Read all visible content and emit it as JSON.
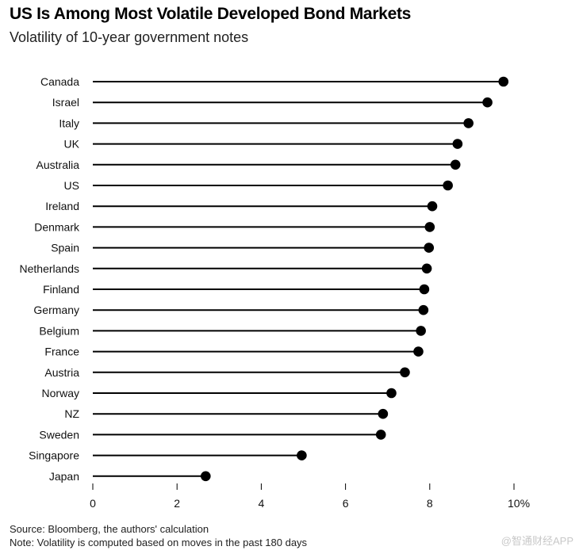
{
  "header": {
    "title": "US Is Among Most Volatile Developed Bond Markets",
    "subtitle": "Volatility of 10-year government notes"
  },
  "footer": {
    "source": "Source: Bloomberg, the authors' calculation",
    "note": "Note: Volatility is computed based on moves in the past 180 days"
  },
  "watermark": "@智通财经APP",
  "colors": {
    "marker": "#000000",
    "line": "#000000",
    "axis": "#000000"
  },
  "chart_data": {
    "type": "lollipop",
    "title": "US Is Among Most Volatile Developed Bond Markets",
    "subtitle": "Volatility of 10-year government notes",
    "xlabel": "",
    "ylabel": "",
    "xlim": [
      0,
      10
    ],
    "x_ticks": [
      0,
      2,
      4,
      6,
      8,
      10
    ],
    "x_tick_labels": [
      "0",
      "2",
      "4",
      "6",
      "8",
      "10%"
    ],
    "grid": false,
    "categories": [
      "Canada",
      "Israel",
      "Italy",
      "UK",
      "Australia",
      "US",
      "Ireland",
      "Denmark",
      "Spain",
      "Netherlands",
      "Finland",
      "Germany",
      "Belgium",
      "France",
      "Austria",
      "Norway",
      "NZ",
      "Sweden",
      "Singapore",
      "Japan"
    ],
    "values": [
      9.75,
      9.37,
      8.92,
      8.66,
      8.61,
      8.43,
      8.06,
      8.0,
      7.98,
      7.93,
      7.87,
      7.85,
      7.79,
      7.73,
      7.41,
      7.09,
      6.89,
      6.84,
      4.96,
      2.68
    ]
  }
}
